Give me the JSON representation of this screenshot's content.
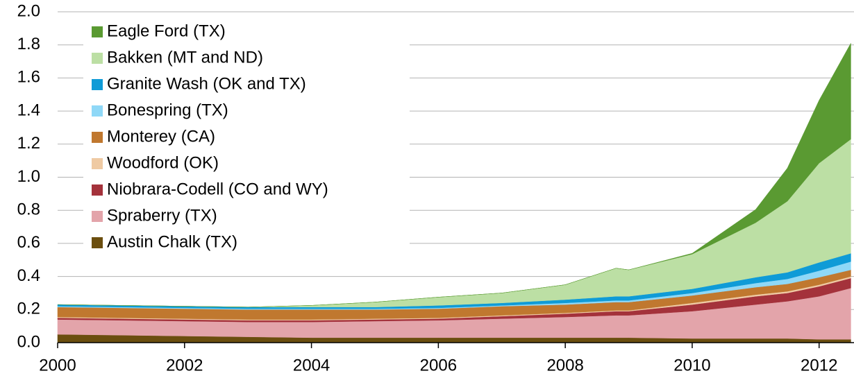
{
  "chart_data": {
    "type": "stacked_area",
    "x": [
      2000,
      2001,
      2002,
      2003,
      2004,
      2005,
      2006,
      2007,
      2008,
      2008.8,
      2009,
      2010,
      2011,
      2011.5,
      2012,
      2012.5
    ],
    "series": [
      {
        "name": "Eagle Ford (TX)",
        "color": "#5a9a32",
        "values": [
          0,
          0,
          0,
          0,
          0,
          0,
          0,
          0,
          0,
          0,
          0,
          0.005,
          0.08,
          0.2,
          0.38,
          0.58
        ]
      },
      {
        "name": "Bakken (MT and ND)",
        "color": "#bcdfa4",
        "values": [
          0,
          0,
          0,
          0,
          0.01,
          0.03,
          0.05,
          0.06,
          0.09,
          0.17,
          0.16,
          0.21,
          0.33,
          0.43,
          0.6,
          0.69
        ]
      },
      {
        "name": "Granite Wash (OK and TX)",
        "color": "#0f9bd7",
        "values": [
          0.01,
          0.01,
          0.01,
          0.01,
          0.01,
          0.01,
          0.015,
          0.015,
          0.02,
          0.025,
          0.025,
          0.025,
          0.035,
          0.04,
          0.05,
          0.05
        ]
      },
      {
        "name": "Bonespring (TX)",
        "color": "#8fd8f7",
        "values": [
          0.005,
          0.005,
          0.005,
          0.005,
          0.005,
          0.005,
          0.005,
          0.005,
          0.01,
          0.01,
          0.01,
          0.015,
          0.025,
          0.03,
          0.04,
          0.05
        ]
      },
      {
        "name": "Monterey (CA)",
        "color": "#c0782f",
        "values": [
          0.06,
          0.06,
          0.06,
          0.06,
          0.06,
          0.055,
          0.055,
          0.055,
          0.05,
          0.05,
          0.05,
          0.045,
          0.045,
          0.045,
          0.045,
          0.04
        ]
      },
      {
        "name": "Woodford (OK)",
        "color": "#efcaa3",
        "values": [
          0.005,
          0.005,
          0.005,
          0.005,
          0.005,
          0.005,
          0.005,
          0.005,
          0.005,
          0.005,
          0.005,
          0.01,
          0.01,
          0.01,
          0.01,
          0.01
        ]
      },
      {
        "name": "Niobrara-Codell (CO and WY)",
        "color": "#a4323b",
        "values": [
          0.01,
          0.01,
          0.01,
          0.01,
          0.01,
          0.01,
          0.01,
          0.015,
          0.02,
          0.025,
          0.025,
          0.04,
          0.05,
          0.05,
          0.06,
          0.06
        ]
      },
      {
        "name": "Spraberry (TX)",
        "color": "#e3a4aa",
        "values": [
          0.09,
          0.09,
          0.09,
          0.09,
          0.095,
          0.1,
          0.105,
          0.115,
          0.125,
          0.135,
          0.135,
          0.165,
          0.205,
          0.225,
          0.26,
          0.31
        ]
      },
      {
        "name": "Austin Chalk (TX)",
        "color": "#6b4e0f",
        "values": [
          0.05,
          0.045,
          0.04,
          0.035,
          0.03,
          0.03,
          0.03,
          0.03,
          0.03,
          0.03,
          0.03,
          0.025,
          0.025,
          0.025,
          0.02,
          0.02
        ]
      }
    ],
    "xlim": [
      2000,
      2012.55
    ],
    "xticks": [
      2000,
      2002,
      2004,
      2006,
      2008,
      2010,
      2012
    ],
    "ylim": [
      0,
      2
    ],
    "yticks": [
      {
        "value": 0,
        "label": "0.0"
      },
      0.2,
      0.4,
      0.6,
      0.8,
      {
        "value": 1,
        "label": "1.0"
      },
      1.2,
      1.4,
      1.6,
      1.8,
      {
        "value": 2,
        "label": "2.0"
      }
    ],
    "grid": true,
    "legend": "upper left"
  }
}
